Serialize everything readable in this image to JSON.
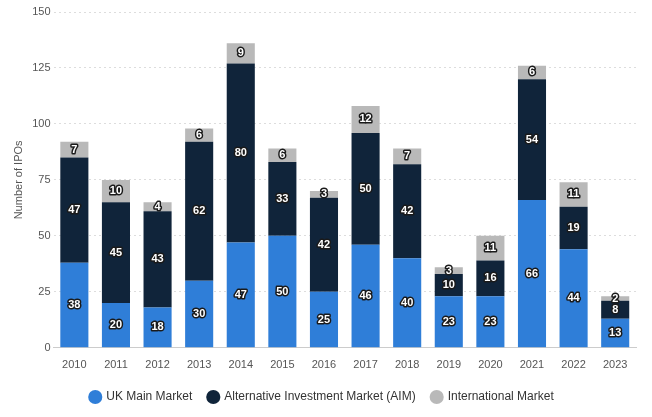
{
  "chart_data": {
    "type": "bar",
    "stacked": true,
    "y_label": "Number of IPOs",
    "categories": [
      "2010",
      "2011",
      "2012",
      "2013",
      "2014",
      "2015",
      "2016",
      "2017",
      "2018",
      "2019",
      "2020",
      "2021",
      "2022",
      "2023"
    ],
    "series": [
      {
        "name": "UK Main Market",
        "color": "#2f7ed8",
        "values": [
          38,
          20,
          18,
          30,
          47,
          50,
          25,
          46,
          40,
          23,
          23,
          66,
          44,
          13
        ]
      },
      {
        "name": "Alternative Investment Market (AIM)",
        "color": "#10243a",
        "values": [
          47,
          45,
          43,
          62,
          80,
          33,
          42,
          50,
          42,
          10,
          16,
          54,
          19,
          8
        ]
      },
      {
        "name": "International Market",
        "color": "#b9b9b9",
        "values": [
          7,
          10,
          4,
          6,
          9,
          6,
          3,
          12,
          7,
          3,
          11,
          6,
          11,
          2
        ]
      }
    ],
    "ylim": [
      0,
      150
    ],
    "yticks": [
      0,
      25,
      50,
      75,
      100,
      125,
      150
    ],
    "grid": true,
    "legend": "bottom",
    "data_labels": true
  }
}
